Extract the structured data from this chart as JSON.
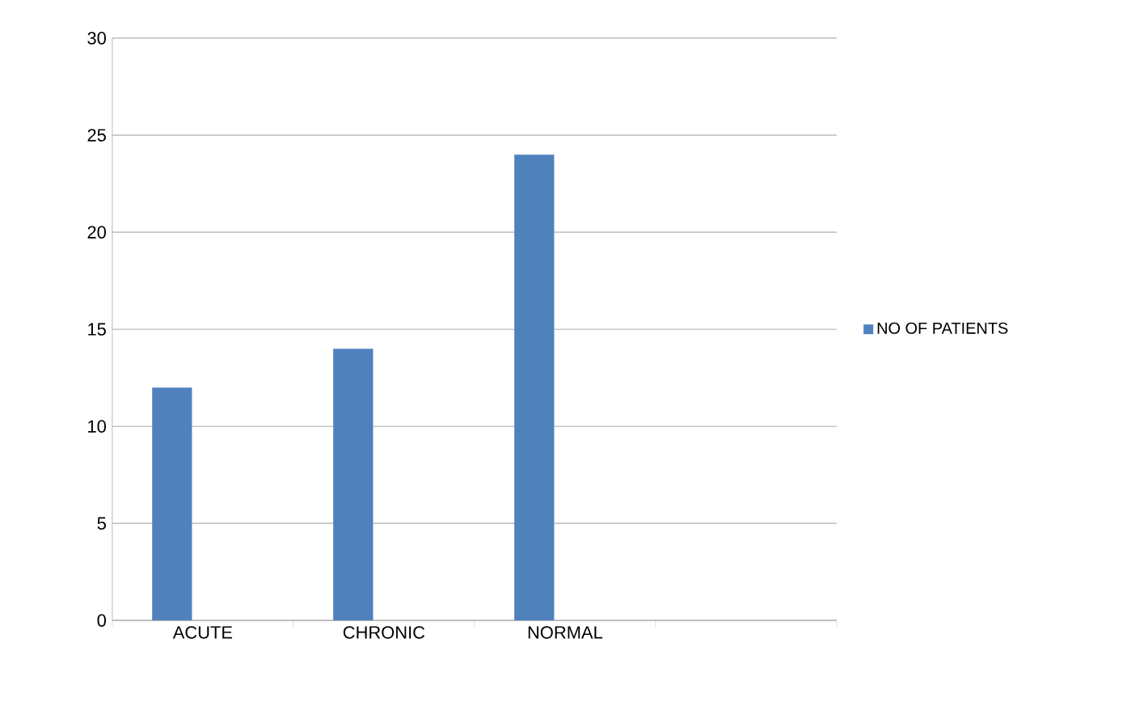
{
  "chart_data": {
    "type": "bar",
    "categories": [
      "ACUTE",
      "CHRONIC",
      "NORMAL",
      null
    ],
    "series": [
      {
        "name": "NO OF PATIENTS",
        "color": "#4f81bd",
        "values": [
          12,
          14,
          24,
          null
        ]
      }
    ],
    "ylim": [
      0,
      30
    ],
    "yticks": [
      0,
      5,
      10,
      15,
      20,
      25,
      30
    ],
    "grid": "y",
    "legend": "right"
  }
}
